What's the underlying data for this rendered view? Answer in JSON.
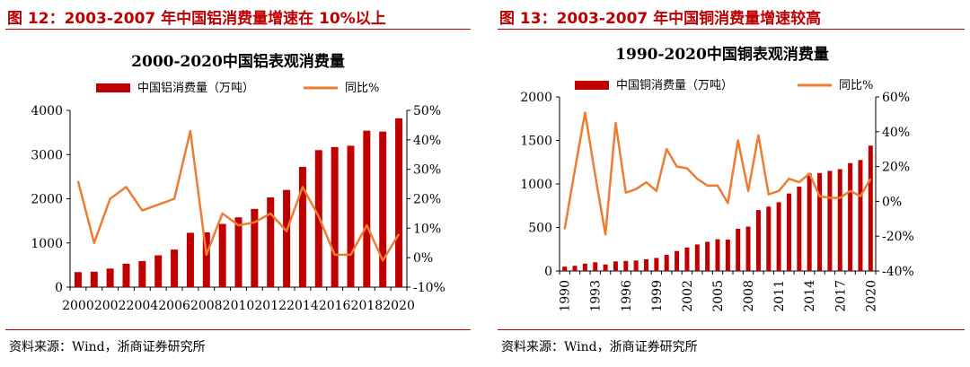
{
  "panels": [
    {
      "figure_title": "图 12：2003-2007 年中国铝消费量增速在 10%以上",
      "source": "资料来源：Wind，浙商证券研究所"
    },
    {
      "figure_title": "图 13：2003-2007 年中国铜消费量增速较高",
      "source": "资料来源：Wind，浙商证券研究所"
    }
  ],
  "colors": {
    "accent": "#c00000",
    "bar": "#c00000",
    "line": "#ed7d31"
  },
  "chart_data": [
    {
      "type": "bar+line",
      "title": "2000-2020中国铝表观消费量",
      "legend": [
        "中国铝消费量（万吨）",
        "同比%"
      ],
      "categories": [
        "2000",
        "2001",
        "2002",
        "2003",
        "2004",
        "2005",
        "2006",
        "2007",
        "2008",
        "2009",
        "2010",
        "2011",
        "2012",
        "2013",
        "2014",
        "2015",
        "2016",
        "2017",
        "2018",
        "2019",
        "2020"
      ],
      "x_tick_labels": [
        "2000",
        "2002",
        "2004",
        "2006",
        "2008",
        "2010",
        "2012",
        "2014",
        "2016",
        "2018",
        "2020"
      ],
      "series": [
        {
          "name": "中国铝消费量（万吨）",
          "type": "bar",
          "axis": "left",
          "values": [
            340,
            350,
            420,
            530,
            590,
            720,
            850,
            1230,
            1240,
            1430,
            1580,
            1770,
            2030,
            2200,
            2720,
            3100,
            3170,
            3200,
            3540,
            3520,
            3820
          ]
        },
        {
          "name": "同比%",
          "type": "line",
          "axis": "right",
          "values": [
            26,
            5,
            20,
            24,
            16,
            18,
            20,
            43,
            1,
            15,
            11,
            12,
            15,
            9,
            24,
            14,
            1,
            1,
            11,
            -1,
            8
          ]
        }
      ],
      "left_axis": {
        "ylim": [
          0,
          4000
        ],
        "ticks": [
          0,
          1000,
          2000,
          3000,
          4000
        ],
        "tick_labels": [
          "0",
          "1000",
          "2000",
          "3000",
          "4000"
        ]
      },
      "right_axis": {
        "ylim": [
          -10,
          50
        ],
        "ticks": [
          -10,
          0,
          10,
          20,
          30,
          40,
          50
        ],
        "tick_labels": [
          "-10%",
          "0%",
          "10%",
          "20%",
          "30%",
          "40%",
          "50%"
        ]
      }
    },
    {
      "type": "bar+line",
      "title": "1990-2020中国铜表观消费量",
      "legend": [
        "中国铜消费量（万吨）",
        "同比%"
      ],
      "categories": [
        "1990",
        "1991",
        "1992",
        "1993",
        "1994",
        "1995",
        "1996",
        "1997",
        "1998",
        "1999",
        "2000",
        "2001",
        "2002",
        "2003",
        "2004",
        "2005",
        "2006",
        "2007",
        "2008",
        "2009",
        "2010",
        "2011",
        "2012",
        "2013",
        "2014",
        "2015",
        "2016",
        "2017",
        "2018",
        "2019",
        "2020"
      ],
      "x_tick_labels": [
        "1990",
        "1993",
        "1996",
        "1999",
        "2002",
        "2005",
        "2008",
        "2011",
        "2014",
        "2017",
        "2020"
      ],
      "series": [
        {
          "name": "中国铜消费量（万吨）",
          "type": "bar",
          "axis": "left",
          "values": [
            50,
            60,
            85,
            100,
            75,
            110,
            115,
            120,
            135,
            150,
            185,
            230,
            270,
            305,
            335,
            365,
            360,
            485,
            510,
            700,
            740,
            790,
            890,
            970,
            1120,
            1125,
            1150,
            1170,
            1240,
            1275,
            1440
          ]
        },
        {
          "name": "同比%",
          "type": "line",
          "axis": "right",
          "values": [
            -16,
            18,
            51,
            15,
            -19,
            45,
            5,
            7,
            11,
            6,
            30,
            20,
            19,
            13,
            9,
            9,
            -1,
            35,
            6,
            38,
            4,
            6,
            13,
            11,
            16,
            3,
            2,
            2,
            6,
            3,
            13
          ]
        }
      ],
      "left_axis": {
        "ylim": [
          0,
          2000
        ],
        "ticks": [
          0,
          500,
          1000,
          1500,
          2000
        ],
        "tick_labels": [
          "0",
          "500",
          "1000",
          "1500",
          "2000"
        ]
      },
      "right_axis": {
        "ylim": [
          -40,
          60
        ],
        "ticks": [
          -40,
          -20,
          0,
          20,
          40,
          60
        ],
        "tick_labels": [
          "-40%",
          "-20%",
          "0%",
          "20%",
          "40%",
          "60%"
        ]
      }
    }
  ]
}
